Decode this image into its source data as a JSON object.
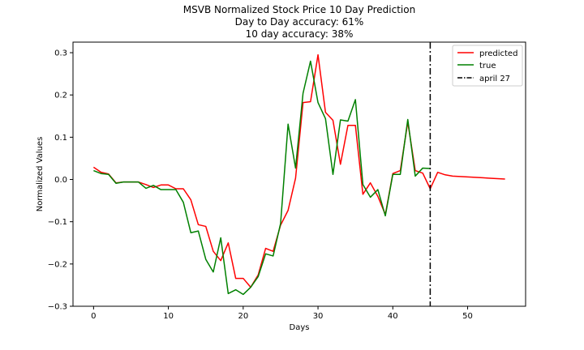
{
  "chart_data": {
    "type": "line",
    "title_lines": [
      "MSVB Normalized Stock Price 10 Day Prediction",
      "Day to Day accuracy: 61%",
      "10 day accuracy: 38%"
    ],
    "xlabel": "Days",
    "ylabel": "Normalized Values",
    "xlim": [
      -2.75,
      57.75
    ],
    "ylim": [
      -0.3,
      0.325
    ],
    "xticks": [
      0,
      10,
      20,
      30,
      40,
      50
    ],
    "xtick_labels": [
      "0",
      "10",
      "20",
      "30",
      "40",
      "50"
    ],
    "yticks": [
      -0.3,
      -0.2,
      -0.1,
      0.0,
      0.1,
      0.2,
      0.3
    ],
    "ytick_labels": [
      "−0.3",
      "−0.2",
      "−0.1",
      "0.0",
      "0.1",
      "0.2",
      "0.3"
    ],
    "grid": false,
    "legend_position": "top-right",
    "series": [
      {
        "name": "predicted",
        "color": "#ff0000",
        "x": [
          0,
          1,
          2,
          3,
          4,
          5,
          6,
          7,
          8,
          9,
          10,
          11,
          12,
          13,
          14,
          15,
          16,
          17,
          18,
          19,
          20,
          21,
          22,
          23,
          24,
          25,
          26,
          27,
          28,
          29,
          30,
          31,
          32,
          33,
          34,
          35,
          36,
          37,
          38,
          39,
          40,
          41,
          42,
          43,
          44,
          45,
          46,
          47,
          48,
          49,
          50,
          51,
          52,
          53,
          54,
          55
        ],
        "values": [
          0.029,
          0.017,
          0.013,
          -0.008,
          -0.006,
          -0.006,
          -0.006,
          -0.012,
          -0.019,
          -0.013,
          -0.013,
          -0.022,
          -0.022,
          -0.048,
          -0.107,
          -0.111,
          -0.17,
          -0.192,
          -0.15,
          -0.234,
          -0.234,
          -0.255,
          -0.226,
          -0.163,
          -0.17,
          -0.108,
          -0.073,
          0.003,
          0.182,
          0.184,
          0.295,
          0.159,
          0.14,
          0.036,
          0.128,
          0.128,
          -0.035,
          -0.008,
          -0.04,
          -0.083,
          0.014,
          0.021,
          0.136,
          0.021,
          0.015,
          -0.022,
          0.017,
          0.011,
          0.008,
          0.007,
          0.006,
          0.005,
          0.004,
          0.003,
          0.002,
          0.001
        ]
      },
      {
        "name": "true",
        "color": "#008000",
        "x": [
          0,
          1,
          2,
          3,
          4,
          5,
          6,
          7,
          8,
          9,
          10,
          11,
          12,
          13,
          14,
          15,
          16,
          17,
          18,
          19,
          20,
          21,
          22,
          23,
          24,
          25,
          26,
          27,
          28,
          29,
          30,
          31,
          32,
          33,
          34,
          35,
          36,
          37,
          38,
          39,
          40,
          41,
          42,
          43,
          44,
          45
        ],
        "values": [
          0.021,
          0.014,
          0.012,
          -0.009,
          -0.006,
          -0.006,
          -0.006,
          -0.021,
          -0.014,
          -0.024,
          -0.024,
          -0.024,
          -0.054,
          -0.126,
          -0.122,
          -0.189,
          -0.219,
          -0.138,
          -0.27,
          -0.261,
          -0.272,
          -0.255,
          -0.23,
          -0.176,
          -0.181,
          -0.104,
          0.131,
          0.027,
          0.204,
          0.28,
          0.182,
          0.144,
          0.012,
          0.141,
          0.138,
          0.189,
          -0.012,
          -0.042,
          -0.024,
          -0.086,
          0.012,
          0.012,
          0.142,
          0.008,
          0.027,
          0.026
        ]
      }
    ],
    "vline": {
      "name": "april 27",
      "x": 45,
      "color": "#000000",
      "style": "dashdot"
    }
  }
}
